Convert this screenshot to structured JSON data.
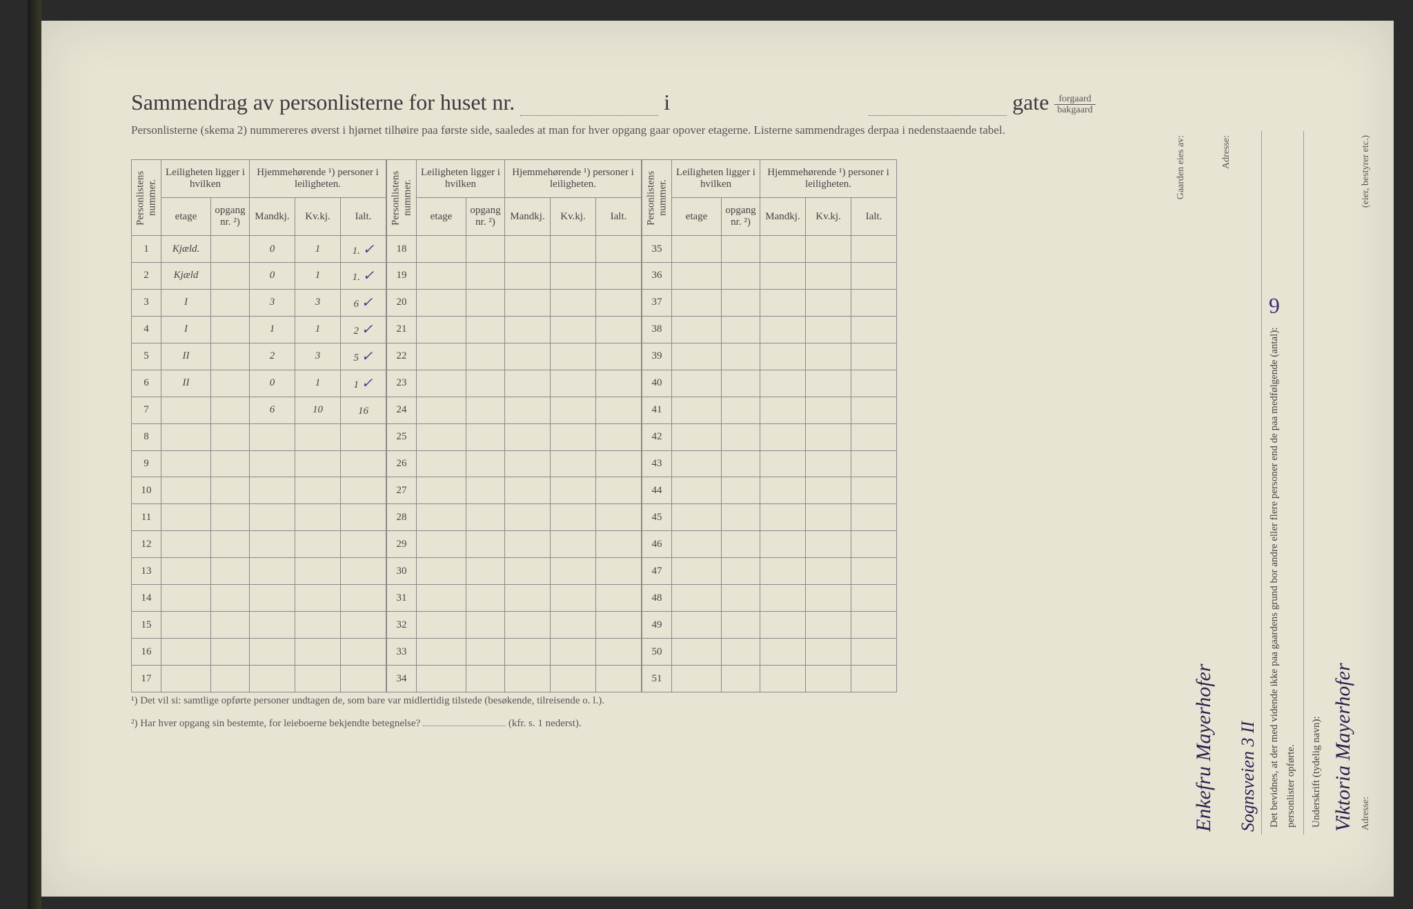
{
  "title": {
    "main": "Sammendrag av personlisterne for huset nr.",
    "i": "i",
    "gate": "gate",
    "forgaard": "forgaard",
    "bakgaard": "bakgaard"
  },
  "subtitle": "Personlisterne (skema 2) nummereres øverst i hjørnet tilhøire paa første side, saaledes at man for hver opgang gaar opover etagerne.  Listerne sammendrages derpaa i nedenstaaende tabel.",
  "headers": {
    "personlistens_nummer": "Personlistens nummer.",
    "leiligheten": "Leiligheten ligger i hvilken",
    "hjemmehorende": "Hjemmehørende ¹) personer i leiligheten.",
    "etage": "etage",
    "opgang": "opgang nr. ²)",
    "mandkj": "Mandkj.",
    "kvkj": "Kv.kj.",
    "ialt": "Ialt."
  },
  "rows": [
    {
      "n": "1",
      "etage": "Kjæld.",
      "opg": "",
      "m": "0",
      "k": "1",
      "i": "1.",
      "chk": "✓"
    },
    {
      "n": "2",
      "etage": "Kjæld",
      "opg": "",
      "m": "0",
      "k": "1",
      "i": "1.",
      "chk": "✓"
    },
    {
      "n": "3",
      "etage": "I",
      "opg": "",
      "m": "3",
      "k": "3",
      "i": "6",
      "chk": "✓"
    },
    {
      "n": "4",
      "etage": "I",
      "opg": "",
      "m": "1",
      "k": "1",
      "i": "2",
      "chk": "✓"
    },
    {
      "n": "5",
      "etage": "II",
      "opg": "",
      "m": "2",
      "k": "3",
      "i": "5",
      "chk": "✓"
    },
    {
      "n": "6",
      "etage": "II",
      "opg": "",
      "m": "0",
      "k": "1",
      "i": "1",
      "chk": "✓"
    },
    {
      "n": "7",
      "etage": "",
      "opg": "",
      "m": "6",
      "k": "10",
      "i": "16",
      "chk": ""
    },
    {
      "n": "8"
    },
    {
      "n": "9"
    },
    {
      "n": "10"
    },
    {
      "n": "11"
    },
    {
      "n": "12"
    },
    {
      "n": "13"
    },
    {
      "n": "14"
    },
    {
      "n": "15"
    },
    {
      "n": "16"
    },
    {
      "n": "17"
    }
  ],
  "rows2_start": 18,
  "rows3_start": 35,
  "footnotes": {
    "f1": "¹)  Det vil si: samtlige opførte personer undtagen de, som bare var midlertidig tilstede (besøkende, tilreisende o. l.).",
    "f2": "²)  Har hver opgang sin bestemte, for leieboerne bekjendte betegnelse?",
    "f2_suffix": "(kfr. s. 1 nederst)."
  },
  "side": {
    "bevidnes": "Det bevidnes, at der med vidende ikke paa gaardens grund bor andre eller flere personer end de paa medfølgende (antal):",
    "antal": "6",
    "personlister": "personlister opførte.",
    "underskrift_label": "Underskrift (tydelig navn):",
    "underskrift": "Viktoria Mayerhofer",
    "eier_label": "(eier, bestyrer etc.)",
    "adresse_label": "Adresse:",
    "gaarden_label": "Gaarden eies av:",
    "gaarden_eier": "Enkefru Mayerhofer",
    "adresse2_label": "Adresse:",
    "adresse2": "Sognsveien 3 II"
  }
}
